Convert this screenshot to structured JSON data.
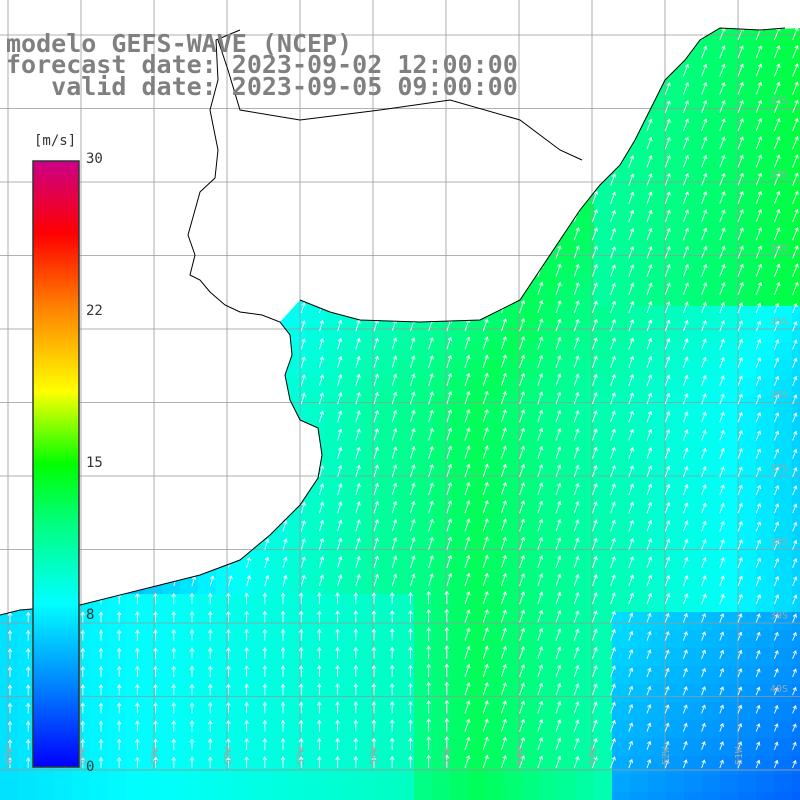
{
  "title": {
    "line1": "modelo GEFS-WAVE (NCEP)",
    "line2": "forecast date: 2023-09-02 12:00:00",
    "line3": "   valid date: 2023-09-05 09:00:00"
  },
  "colorbar": {
    "unit": "[m/s]",
    "ticks": [
      "30",
      "22",
      "15",
      "8",
      "0"
    ],
    "tick_values": [
      30,
      22,
      15,
      8,
      0
    ],
    "min": 0,
    "max": 30
  },
  "axis_labels": {
    "lon": [
      "61W",
      "60W",
      "59W",
      "58W",
      "57W",
      "56W",
      "55W",
      "54W",
      "53W",
      "52W",
      "51W"
    ],
    "lat": [
      "32S",
      "33S",
      "34S",
      "35S",
      "36S",
      "37S",
      "38S",
      "39S",
      "40S"
    ]
  },
  "colors": {
    "land": "#ffffff",
    "coast": "#000000",
    "grid": "#999999",
    "arrow": "#ffffff",
    "title": "#808080"
  },
  "field": {
    "variable": "wind speed",
    "direction": "south-southwesterly flow (arrows pointing north-northeast)",
    "typical_range_ms": [
      6,
      14
    ]
  }
}
